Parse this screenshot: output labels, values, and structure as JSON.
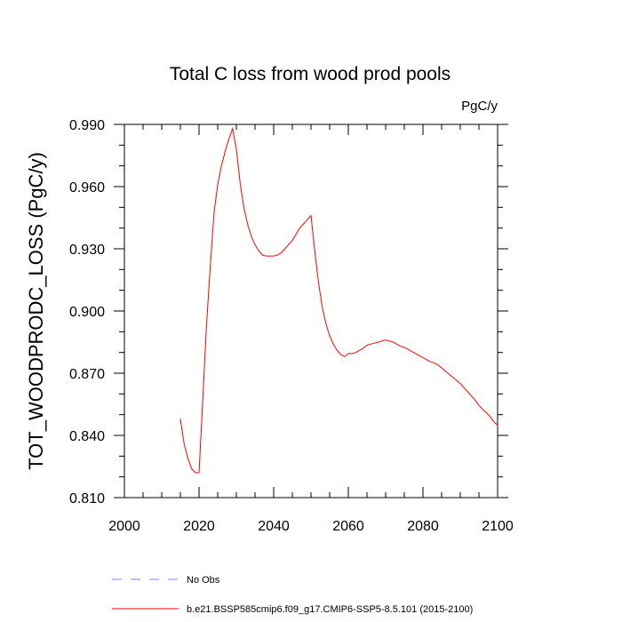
{
  "chart_data": {
    "type": "line",
    "title": "Total C loss from wood prod pools",
    "units": "PgC/y",
    "ylabel": "TOT_WOODPRODC_LOSS  (PgC/y)",
    "xlabel": "",
    "xlim": [
      2000,
      2100
    ],
    "ylim": [
      0.81,
      0.99
    ],
    "x_ticks": [
      "2000",
      "2020",
      "2040",
      "2060",
      "2080",
      "2100"
    ],
    "y_ticks": [
      "0.810",
      "0.840",
      "0.870",
      "0.900",
      "0.930",
      "0.960",
      "0.990"
    ],
    "grid": false,
    "legend_position": "bottom-left",
    "series": [
      {
        "name": "No Obs",
        "color": "#8080ff",
        "style": "dashed",
        "x": [],
        "y": []
      },
      {
        "name": "b.e21.BSSP585cmip6.f09_g17.CMIP6-SSP5-8.5.101 (2015-2100)",
        "color": "#ff0000",
        "style": "solid",
        "x": [
          2015,
          2016,
          2017,
          2018,
          2019,
          2020,
          2021,
          2022,
          2023,
          2024,
          2025,
          2026,
          2027,
          2028,
          2029,
          2030,
          2031,
          2032,
          2033,
          2034,
          2035,
          2036,
          2037,
          2038,
          2039,
          2040,
          2041,
          2042,
          2043,
          2044,
          2045,
          2046,
          2047,
          2048,
          2049,
          2050,
          2051,
          2052,
          2053,
          2054,
          2055,
          2056,
          2057,
          2058,
          2059,
          2060,
          2061,
          2062,
          2063,
          2064,
          2065,
          2066,
          2067,
          2068,
          2069,
          2070,
          2071,
          2072,
          2073,
          2074,
          2075,
          2076,
          2077,
          2078,
          2079,
          2080,
          2081,
          2082,
          2083,
          2084,
          2085,
          2086,
          2087,
          2088,
          2089,
          2090,
          2091,
          2092,
          2093,
          2094,
          2095,
          2096,
          2097,
          2098,
          2099,
          2100
        ],
        "y": [
          0.848,
          0.836,
          0.829,
          0.824,
          0.822,
          0.822,
          0.857,
          0.893,
          0.921,
          0.947,
          0.961,
          0.97,
          0.977,
          0.983,
          0.988,
          0.978,
          0.962,
          0.95,
          0.942,
          0.936,
          0.932,
          0.929,
          0.927,
          0.9265,
          0.9265,
          0.9265,
          0.927,
          0.928,
          0.93,
          0.932,
          0.934,
          0.937,
          0.94,
          0.942,
          0.944,
          0.946,
          0.929,
          0.914,
          0.902,
          0.894,
          0.888,
          0.884,
          0.881,
          0.879,
          0.878,
          0.8795,
          0.8795,
          0.88,
          0.881,
          0.882,
          0.8835,
          0.884,
          0.8845,
          0.885,
          0.8855,
          0.886,
          0.8855,
          0.885,
          0.884,
          0.883,
          0.8825,
          0.8815,
          0.8805,
          0.8795,
          0.8785,
          0.8775,
          0.8765,
          0.8755,
          0.875,
          0.874,
          0.8725,
          0.871,
          0.8695,
          0.868,
          0.8665,
          0.865,
          0.863,
          0.861,
          0.859,
          0.857,
          0.8545,
          0.8525,
          0.851,
          0.849,
          0.8465,
          0.845
        ]
      }
    ]
  }
}
